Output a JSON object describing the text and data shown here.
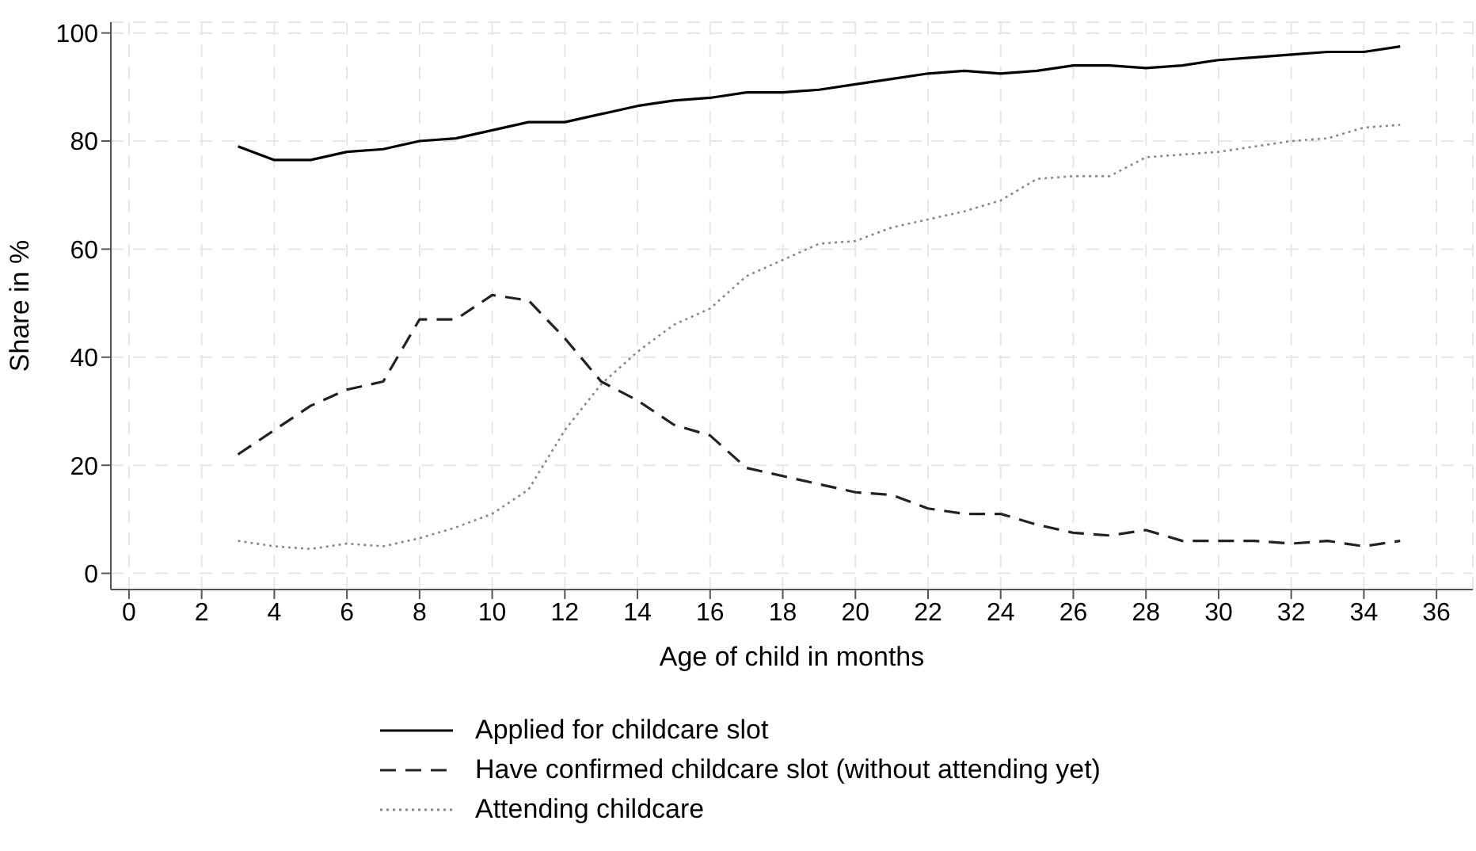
{
  "chart_data": {
    "type": "line",
    "xlabel": "Age of child in months",
    "ylabel": "Share in %",
    "x": [
      3,
      4,
      5,
      6,
      7,
      8,
      9,
      10,
      11,
      12,
      13,
      14,
      15,
      16,
      17,
      18,
      19,
      20,
      21,
      22,
      23,
      24,
      25,
      26,
      27,
      28,
      29,
      30,
      31,
      32,
      33,
      34,
      35
    ],
    "xlim": [
      -0.5,
      37
    ],
    "xticks": [
      0,
      2,
      4,
      6,
      8,
      10,
      12,
      14,
      16,
      18,
      20,
      22,
      24,
      26,
      28,
      30,
      32,
      34,
      36
    ],
    "ylim": [
      -3,
      102
    ],
    "yticks": [
      0,
      20,
      40,
      60,
      80,
      100
    ],
    "grid": true,
    "legend": "bottom",
    "marker": "none",
    "series": [
      {
        "name": "Applied for childcare slot",
        "color": "#000000",
        "line_style": "solid",
        "values": [
          79,
          76.5,
          76.5,
          78,
          78.5,
          80,
          80.5,
          82,
          83.5,
          83.5,
          85,
          86.5,
          87.5,
          88,
          89,
          89,
          89.5,
          90.5,
          91.5,
          92.5,
          93,
          92.5,
          93,
          94,
          94,
          93.5,
          94,
          95,
          95.5,
          96,
          96.5,
          96.5,
          97.5
        ]
      },
      {
        "name": "Have confirmed childcare slot (without attending yet)",
        "color": "#222222",
        "line_style": "dashed",
        "values": [
          22,
          26.5,
          31,
          34,
          35.5,
          47,
          47,
          51.5,
          50.5,
          43.5,
          35.5,
          32,
          27.5,
          25.5,
          19.5,
          18,
          16.5,
          15,
          14.5,
          12,
          11,
          11,
          9,
          7.5,
          7,
          8,
          6,
          6,
          6,
          5.5,
          6,
          5,
          6
        ]
      },
      {
        "name": "Attending childcare",
        "color": "#888888",
        "line_style": "dotted",
        "values": [
          6,
          5,
          4.5,
          5.5,
          5,
          6.5,
          8.5,
          11,
          15.5,
          26.5,
          35,
          41,
          46,
          49,
          55,
          58,
          61,
          61.5,
          64,
          65.5,
          67,
          69,
          73,
          73.5,
          73.5,
          77,
          77.5,
          78,
          79,
          80,
          80.5,
          82.5,
          83
        ]
      }
    ]
  }
}
